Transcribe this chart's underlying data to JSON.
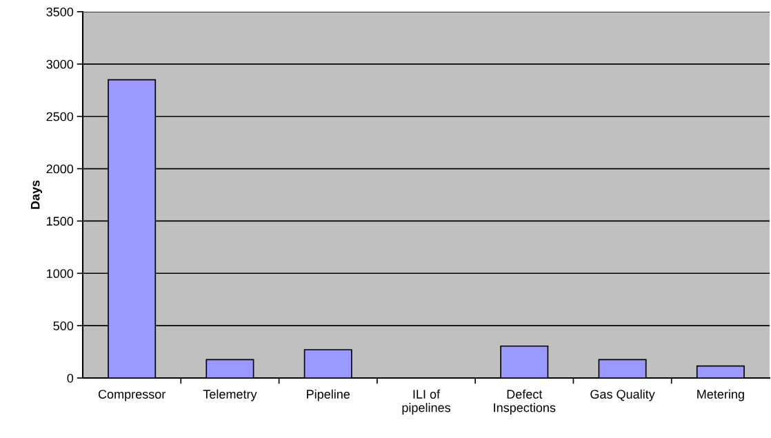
{
  "chart_data": {
    "type": "bar",
    "ylabel": "Days",
    "categories": [
      "Compressor",
      "Telemetry",
      "Pipeline",
      "ILI of\npipelines",
      "Defect\nInspections",
      "Gas Quality",
      "Metering"
    ],
    "values": [
      2850,
      175,
      270,
      null,
      305,
      175,
      115
    ],
    "color": "#9999ff",
    "ylim": [
      0,
      3500
    ],
    "yticks": [
      0,
      500,
      1000,
      1500,
      2000,
      2500,
      3000,
      3500
    ],
    "grid": "y",
    "legend": false
  }
}
